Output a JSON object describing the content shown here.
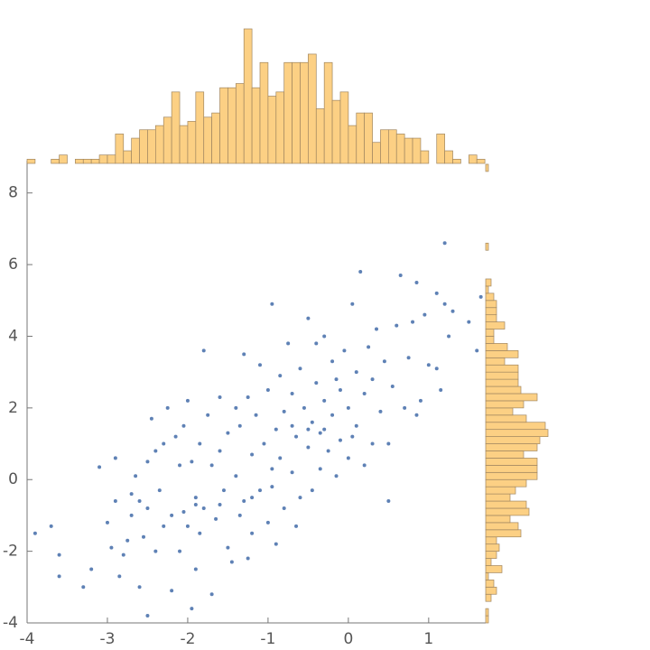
{
  "chart_data": [
    {
      "type": "scatter",
      "color": "#5e81b5",
      "xlim": [
        -4,
        1.71
      ],
      "ylim": [
        -4,
        8.9
      ],
      "xticks": [
        -4,
        -3,
        -2,
        -1,
        0,
        1
      ],
      "yticks": [
        -4,
        -2,
        0,
        2,
        4,
        6,
        8
      ],
      "x": [
        -3.9,
        -3.7,
        -3.6,
        -3.6,
        -3.3,
        -3.2,
        -3.1,
        -3.0,
        -2.95,
        -2.9,
        -2.9,
        -2.85,
        -2.8,
        -2.75,
        -2.7,
        -2.7,
        -2.65,
        -2.6,
        -2.55,
        -2.5,
        -2.5,
        -2.5,
        -2.45,
        -2.4,
        -2.4,
        -2.35,
        -2.3,
        -2.3,
        -2.25,
        -2.2,
        -2.2,
        -2.15,
        -2.1,
        -2.1,
        -2.05,
        -2.05,
        -2.0,
        -2.0,
        -1.95,
        -1.95,
        -1.9,
        -1.9,
        -1.85,
        -1.85,
        -1.8,
        -1.8,
        -1.75,
        -1.7,
        -1.7,
        -1.65,
        -1.6,
        -1.6,
        -1.55,
        -1.5,
        -1.5,
        -1.45,
        -1.4,
        -1.4,
        -1.35,
        -1.35,
        -1.3,
        -1.3,
        -1.25,
        -1.25,
        -1.2,
        -1.2,
        -1.15,
        -1.1,
        -1.1,
        -1.05,
        -1.0,
        -1.0,
        -0.95,
        -0.95,
        -0.9,
        -0.9,
        -0.85,
        -0.85,
        -0.8,
        -0.8,
        -0.75,
        -0.7,
        -0.7,
        -0.65,
        -0.65,
        -0.6,
        -0.6,
        -0.55,
        -0.5,
        -0.5,
        -0.45,
        -0.45,
        -0.4,
        -0.4,
        -0.35,
        -0.35,
        -0.3,
        -0.3,
        -0.25,
        -0.2,
        -0.2,
        -0.15,
        -0.1,
        -0.1,
        -0.05,
        0.0,
        0.0,
        0.05,
        0.1,
        0.1,
        0.15,
        0.2,
        0.2,
        0.25,
        0.3,
        0.3,
        0.35,
        0.4,
        0.45,
        0.5,
        0.5,
        0.55,
        0.6,
        0.65,
        0.7,
        0.75,
        0.8,
        0.85,
        0.85,
        0.9,
        0.95,
        1.0,
        1.1,
        1.1,
        1.15,
        1.2,
        1.2,
        1.25,
        1.3,
        1.5,
        1.6,
        1.65,
        -1.2,
        -0.95,
        -0.7,
        -0.5,
        -1.6,
        -1.9,
        -2.6,
        -0.3,
        0.05,
        -0.15
      ],
      "y": [
        -1.5,
        -1.3,
        -2.1,
        -2.7,
        -3.0,
        -2.5,
        0.35,
        -1.2,
        -1.9,
        0.6,
        -0.6,
        -2.7,
        -2.1,
        -1.7,
        -1.0,
        -0.4,
        0.1,
        -3.0,
        -1.6,
        -3.8,
        -0.8,
        0.5,
        1.7,
        0.8,
        -2.0,
        -0.3,
        -1.3,
        1.0,
        2.0,
        -3.1,
        -1.0,
        1.2,
        -2.0,
        0.4,
        -0.9,
        1.5,
        2.2,
        -1.3,
        -3.6,
        0.5,
        -2.5,
        -0.5,
        -1.5,
        1.0,
        -0.8,
        3.6,
        1.8,
        0.4,
        -3.2,
        -1.1,
        2.3,
        0.8,
        -0.3,
        -1.9,
        1.3,
        -2.3,
        0.1,
        2.0,
        -1.0,
        1.5,
        3.5,
        -0.6,
        -2.2,
        2.3,
        0.7,
        -1.5,
        1.8,
        -0.3,
        3.2,
        1.0,
        -1.2,
        2.5,
        -0.2,
        4.9,
        1.4,
        -1.8,
        0.6,
        2.9,
        -0.8,
        1.9,
        3.8,
        0.2,
        2.4,
        -1.3,
        1.2,
        3.1,
        -0.5,
        2.0,
        0.9,
        4.5,
        1.6,
        -0.3,
        2.7,
        3.8,
        0.3,
        1.3,
        4.0,
        2.2,
        0.8,
        1.8,
        3.3,
        0.1,
        2.5,
        1.1,
        3.6,
        0.6,
        2.0,
        4.9,
        1.5,
        3.0,
        5.8,
        0.4,
        2.4,
        3.7,
        1.0,
        2.8,
        4.2,
        1.9,
        3.3,
        -0.6,
        1.0,
        2.6,
        4.3,
        5.7,
        2.0,
        3.4,
        4.4,
        1.8,
        5.5,
        2.2,
        4.6,
        3.2,
        5.2,
        3.1,
        2.5,
        6.6,
        4.9,
        4.0,
        4.7,
        4.4,
        3.6,
        5.1,
        -0.5,
        0.3,
        1.5,
        1.4,
        -0.7,
        -0.7,
        -0.6,
        1.4,
        1.2,
        2.8
      ]
    },
    {
      "type": "histogram",
      "orientation": "vertical",
      "color": "#fcd084",
      "edge_color": "#a08660",
      "bins": [
        -4.0,
        -3.9,
        -3.8,
        -3.7,
        -3.6,
        -3.5,
        -3.4,
        -3.3,
        -3.2,
        -3.1,
        -3.0,
        -2.9,
        -2.8,
        -2.7,
        -2.6,
        -2.5,
        -2.4,
        -2.3,
        -2.2,
        -2.1,
        -2.0,
        -1.9,
        -1.8,
        -1.7,
        -1.6,
        -1.5,
        -1.4,
        -1.3,
        -1.2,
        -1.1,
        -1.0,
        -0.9,
        -0.8,
        -0.7,
        -0.6,
        -0.5,
        -0.4,
        -0.3,
        -0.2,
        -0.1,
        0.0,
        0.1,
        0.2,
        0.3,
        0.4,
        0.5,
        0.6,
        0.7,
        0.8,
        0.9,
        1.0,
        1.1,
        1.2,
        1.3,
        1.4,
        1.5,
        1.6,
        1.7
      ],
      "values": [
        1,
        0,
        0,
        1,
        2,
        0,
        1,
        1,
        1,
        2,
        2,
        7,
        3,
        6,
        8,
        8,
        9,
        11,
        17,
        9,
        10,
        17,
        11,
        12,
        18,
        18,
        19,
        32,
        18,
        24,
        16,
        17,
        24,
        24,
        24,
        26,
        13,
        24,
        15,
        17,
        9,
        12,
        12,
        5,
        8,
        8,
        7,
        6,
        6,
        3,
        0,
        7,
        3,
        1,
        0,
        2,
        1
      ]
    },
    {
      "type": "histogram",
      "orientation": "horizontal",
      "color": "#fcd084",
      "edge_color": "#a08660",
      "bins": [
        -4.0,
        -3.8,
        -3.6,
        -3.4,
        -3.2,
        -3.0,
        -2.8,
        -2.6,
        -2.4,
        -2.2,
        -2.0,
        -1.8,
        -1.6,
        -1.4,
        -1.2,
        -1.0,
        -0.8,
        -0.6,
        -0.4,
        -0.2,
        0.0,
        0.2,
        0.4,
        0.6,
        0.8,
        1.0,
        1.2,
        1.4,
        1.6,
        1.8,
        2.0,
        2.2,
        2.4,
        2.6,
        2.8,
        3.0,
        3.2,
        3.4,
        3.6,
        3.8,
        4.0,
        4.2,
        4.4,
        4.6,
        4.8,
        5.0,
        5.2,
        5.4,
        5.6,
        5.8,
        6.0,
        6.2,
        6.4,
        6.6,
        6.8,
        7.0,
        7.2,
        7.4,
        7.6,
        7.8,
        8.0,
        8.2,
        8.4,
        8.6,
        8.8
      ],
      "values": [
        1,
        1,
        0,
        2,
        4,
        3,
        1,
        6,
        2,
        4,
        5,
        4,
        13,
        12,
        9,
        16,
        15,
        9,
        11,
        15,
        19,
        19,
        19,
        14,
        19,
        20,
        23,
        22,
        15,
        10,
        14,
        19,
        13,
        12,
        12,
        12,
        7,
        12,
        8,
        3,
        3,
        7,
        4,
        4,
        4,
        3,
        1,
        2,
        0,
        0,
        0,
        0,
        1,
        0,
        0,
        0,
        0,
        0,
        0,
        0,
        0,
        0,
        0,
        1
      ]
    }
  ]
}
